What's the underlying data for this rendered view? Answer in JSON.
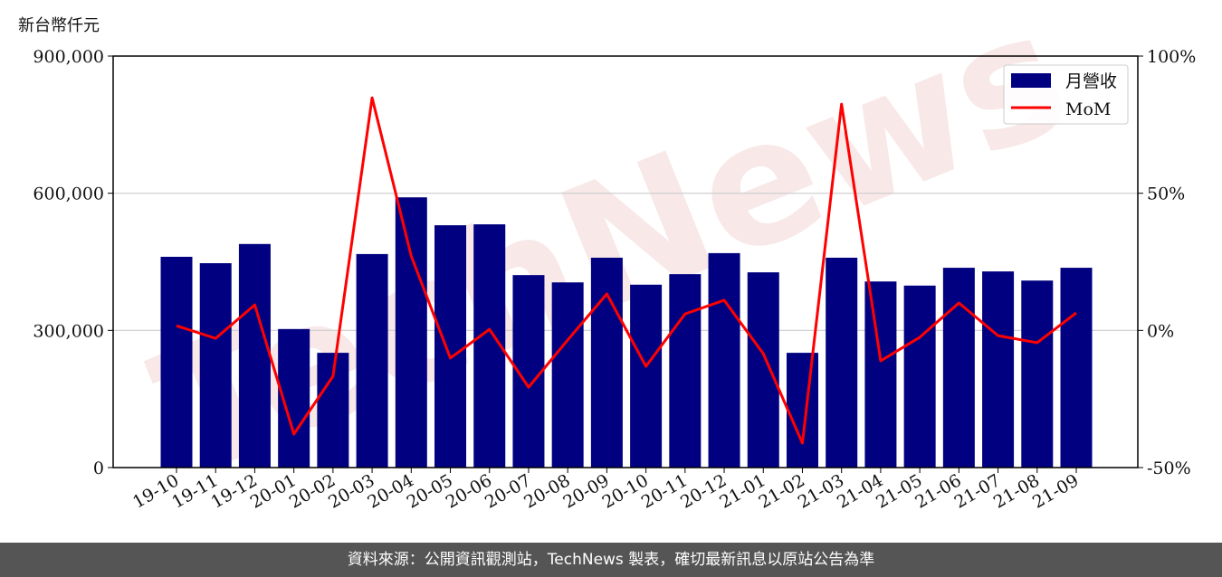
{
  "chart_data": {
    "type": "bar+line",
    "left_axis_unit": "新台幣仟元",
    "categories": [
      "19-10",
      "19-11",
      "19-12",
      "20-01",
      "20-02",
      "20-03",
      "20-04",
      "20-05",
      "20-06",
      "20-07",
      "20-08",
      "20-09",
      "20-10",
      "20-11",
      "20-12",
      "21-01",
      "21-02",
      "21-03",
      "21-04",
      "21-05",
      "21-06",
      "21-07",
      "21-08",
      "21-09"
    ],
    "series": [
      {
        "name": "月營收",
        "type": "bar",
        "axis": "left",
        "color": "#000080",
        "values": [
          461000,
          447000,
          489000,
          303000,
          251000,
          467000,
          591000,
          530000,
          532000,
          421000,
          405000,
          459000,
          400000,
          423000,
          469000,
          427000,
          251000,
          459000,
          407000,
          398000,
          437000,
          429000,
          409000,
          437000
        ]
      },
      {
        "name": "MoM",
        "type": "line",
        "axis": "right",
        "color": "#ff0000",
        "values": [
          1.7,
          -2.9,
          9.3,
          -37.8,
          -16.7,
          84.8,
          27.1,
          -10.1,
          0.4,
          -20.7,
          -3.5,
          13.3,
          -13.1,
          6.0,
          11.0,
          -8.5,
          -41.1,
          82.5,
          -11.1,
          -2.5,
          10.0,
          -1.9,
          -4.5,
          6.4
        ]
      }
    ],
    "left_ylim": [
      0,
      900000
    ],
    "left_ticks": [
      "0",
      "300,000",
      "600,000",
      "900,000"
    ],
    "left_tick_values": [
      0,
      300000,
      600000,
      900000
    ],
    "right_ylim": [
      -50,
      100
    ],
    "right_ticks": [
      "-50%",
      "0%",
      "50%",
      "100%"
    ],
    "right_tick_values": [
      -50,
      0,
      50,
      100
    ],
    "grid": "horizontal",
    "legend_placement": "top-right",
    "watermark": "TechNews"
  },
  "footer": {
    "source": "資料來源：公開資訊觀測站，TechNews 製表，確切最新訊息以原站公告為準"
  }
}
